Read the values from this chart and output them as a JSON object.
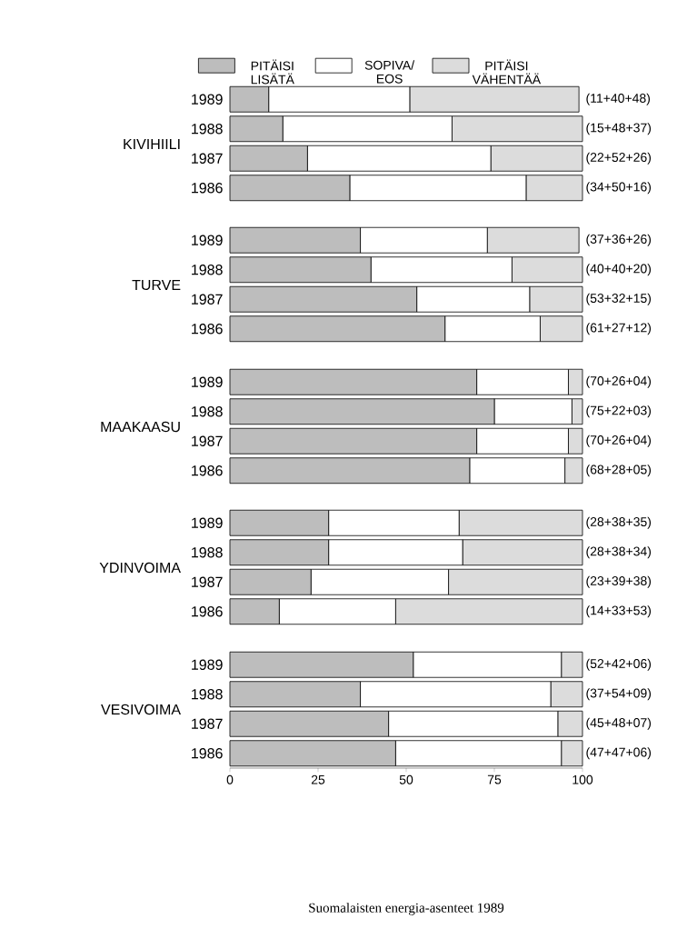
{
  "chart_data": [
    {
      "type": "bar",
      "orientation": "horizontal",
      "stacked": true,
      "title": "KIVIHIILI",
      "categories": [
        "1989",
        "1988",
        "1987",
        "1986"
      ],
      "xlim": [
        0,
        100
      ],
      "xticks": [
        0,
        25,
        50,
        75,
        100
      ],
      "tick_labels": "y",
      "legend": "top",
      "series": [
        {
          "name": "PITÄISI LISÄTÄ",
          "color": "#bdbdbd",
          "values": [
            11,
            15,
            22,
            34
          ]
        },
        {
          "name": "SOPIVA/ EOS",
          "color": "#ffffff",
          "values": [
            40,
            48,
            52,
            50
          ]
        },
        {
          "name": "PITÄISI VÄHENTÄÄ",
          "color": "#dcdcdc",
          "values": [
            48,
            37,
            26,
            16
          ],
          "value_labels": [
            "(11+40+48)",
            "(15+48+37)",
            "(22+52+26)",
            "(34+50+16)"
          ]
        }
      ]
    },
    {
      "type": "bar",
      "orientation": "horizontal",
      "stacked": true,
      "title": "TURVE",
      "categories": [
        "1989",
        "1988",
        "1987",
        "1986"
      ],
      "xlim": [
        0,
        100
      ],
      "xticks": [
        0,
        25,
        50,
        75,
        100
      ],
      "tick_labels": "y",
      "series": [
        {
          "color": "#bdbdbd",
          "values": [
            37,
            40,
            53,
            61
          ]
        },
        {
          "color": "#ffffff",
          "values": [
            36,
            40,
            32,
            27
          ]
        },
        {
          "color": "#dcdcdc",
          "values": [
            26,
            20,
            15,
            12
          ],
          "value_labels": [
            "(37+36+26)",
            "(40+40+20)",
            "(53+32+15)",
            "(61+27+12)"
          ]
        }
      ]
    },
    {
      "type": "bar",
      "orientation": "horizontal",
      "stacked": true,
      "title": "MAAKAASU",
      "categories": [
        "1989",
        "1988",
        "1987",
        "1986"
      ],
      "xlim": [
        0,
        100
      ],
      "xticks": [
        0,
        25,
        50,
        75,
        100
      ],
      "tick_labels": "y",
      "series": [
        {
          "color": "#bdbdbd",
          "values": [
            70,
            75,
            70,
            68
          ]
        },
        {
          "color": "#ffffff",
          "values": [
            26,
            22,
            26,
            27
          ]
        },
        {
          "color": "#dcdcdc",
          "values": [
            4,
            3,
            4,
            5
          ],
          "value_labels": [
            "(70+26+04)",
            "(75+22+03)",
            "(70+26+04)",
            "(68+28+05)"
          ]
        }
      ]
    },
    {
      "type": "bar",
      "orientation": "horizontal",
      "stacked": true,
      "title": "YDINVOIMA",
      "categories": [
        "1989",
        "1988",
        "1987",
        "1986"
      ],
      "xlim": [
        0,
        100
      ],
      "xticks": [
        0,
        25,
        50,
        75,
        100
      ],
      "tick_labels": "y",
      "series": [
        {
          "color": "#bdbdbd",
          "values": [
            28,
            28,
            23,
            14
          ]
        },
        {
          "color": "#ffffff",
          "values": [
            37,
            38,
            39,
            33
          ]
        },
        {
          "color": "#dcdcdc",
          "values": [
            35,
            34,
            38,
            53
          ],
          "value_labels": [
            "(28+38+35)",
            "(28+38+34)",
            "(23+39+38)",
            "(14+33+53)"
          ]
        }
      ]
    },
    {
      "type": "bar",
      "orientation": "horizontal",
      "stacked": true,
      "title": "VESIVOIMA",
      "categories": [
        "1989",
        "1988",
        "1987",
        "1986"
      ],
      "xlim": [
        0,
        100
      ],
      "xticks": [
        0,
        25,
        50,
        75,
        100
      ],
      "annotations": [
        "Suomalaisten energia-asenteet 1989"
      ],
      "series": [
        {
          "color": "#bdbdbd",
          "values": [
            52,
            37,
            45,
            47
          ]
        },
        {
          "color": "#ffffff",
          "values": [
            42,
            54,
            48,
            47
          ]
        },
        {
          "color": "#dcdcdc",
          "values": [
            6,
            9,
            7,
            6
          ],
          "value_labels": [
            "(52+42+06)",
            "(37+54+09)",
            "(45+48+07)",
            "(47+47+06)"
          ]
        }
      ]
    }
  ]
}
